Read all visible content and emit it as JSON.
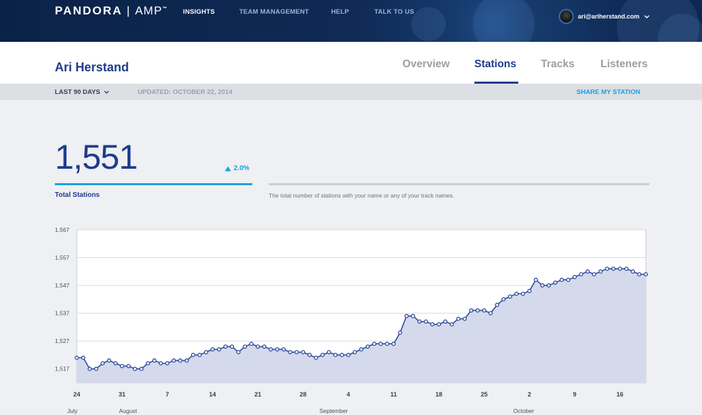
{
  "topbar": {
    "logo_main": "PANDORA",
    "logo_sep": "|",
    "logo_amp": "AMP",
    "logo_tm": "™",
    "nav": [
      {
        "label": "INSIGHTS",
        "active": true
      },
      {
        "label": "TEAM MANAGEMENT",
        "active": false
      },
      {
        "label": "HELP",
        "active": false
      },
      {
        "label": "TALK TO US",
        "active": false
      }
    ],
    "user_email": "ari@ariherstand.com"
  },
  "header": {
    "artist": "Ari Herstand",
    "tabs": [
      {
        "label": "Overview",
        "active": false
      },
      {
        "label": "Stations",
        "active": true
      },
      {
        "label": "Tracks",
        "active": false
      },
      {
        "label": "Listeners",
        "active": false
      }
    ]
  },
  "subbar": {
    "range": "LAST 90 DAYS",
    "updated": "UPDATED: OCTOBER 22, 2014",
    "share": "SHARE MY STATION"
  },
  "metric": {
    "value": "1,551",
    "change": "2.0%",
    "label": "Total Stations",
    "description": "The total number of stations with your name or any of your track names."
  },
  "colors": {
    "brand_blue": "#1e3c8c",
    "accent_blue": "#1a9fe0",
    "area_fill": "#d5d9ec",
    "line": "#2c4a9a"
  },
  "chart_data": {
    "type": "area",
    "title": "",
    "xlabel": "",
    "ylabel": "",
    "ylim": [
      1512,
      1567
    ],
    "y_ticks": [
      1517,
      1527,
      1537,
      1547,
      1557,
      1567
    ],
    "y_tick_labels": [
      "1,517",
      "1,527",
      "1,537",
      "1,547",
      "1,557",
      "1,567"
    ],
    "x_day_ticks": [
      "24",
      "31",
      "7",
      "14",
      "21",
      "28",
      "4",
      "11",
      "18",
      "25",
      "2",
      "9",
      "16"
    ],
    "x_month_labels": [
      "July",
      "August",
      "September",
      "October"
    ],
    "x_start": "2014-07-24",
    "x_end": "2014-10-21",
    "series": [
      {
        "name": "Total Stations",
        "values": [
          1521,
          1521,
          1517,
          1517,
          1519,
          1520,
          1519,
          1518,
          1518,
          1517,
          1517,
          1519,
          1520,
          1519,
          1519,
          1520,
          1520,
          1520,
          1522,
          1522,
          1523,
          1524,
          1524,
          1525,
          1525,
          1523,
          1525,
          1526,
          1525,
          1525,
          1524,
          1524,
          1524,
          1523,
          1523,
          1523,
          1522,
          1521,
          1522,
          1523,
          1522,
          1522,
          1522,
          1523,
          1524,
          1525,
          1526,
          1526,
          1526,
          1526,
          1530,
          1536,
          1536,
          1534,
          1534,
          1533,
          1533,
          1534,
          1533,
          1535,
          1535,
          1538,
          1538,
          1538,
          1537,
          1540,
          1542,
          1543,
          1544,
          1544,
          1545,
          1549,
          1547,
          1547,
          1548,
          1549,
          1549,
          1550,
          1551,
          1552,
          1551,
          1552,
          1553,
          1553,
          1553,
          1553,
          1552,
          1551,
          1551
        ]
      }
    ],
    "grid": true,
    "legend": "none"
  }
}
